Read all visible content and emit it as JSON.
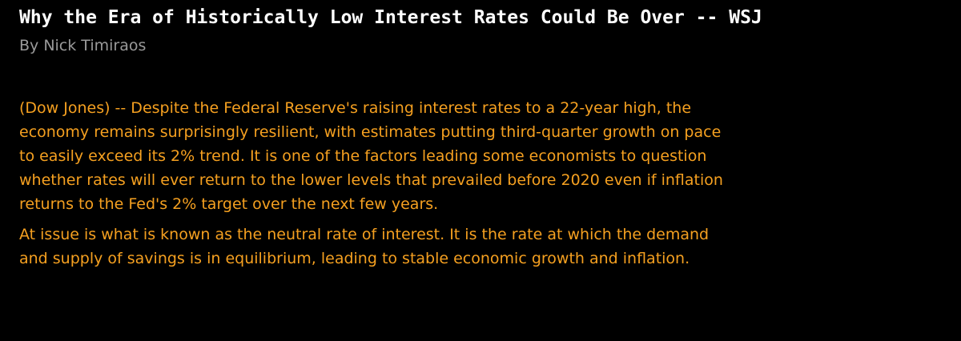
{
  "article": {
    "headline": "Why the Era of Historically Low Interest Rates Could Be Over -- WSJ",
    "byline": "By Nick Timiraos",
    "paragraphs": [
      "(Dow Jones) -- Despite the Federal Reserve's raising interest rates to a 22-year high, the economy remains surprisingly resilient, with estimates putting third-quarter growth on pace to easily exceed its 2% trend. It is one of the factors leading some economists to question whether rates will ever return to the lower levels that prevailed before 2020 even if inflation returns to the Fed's 2% target over the next few years.",
      "At issue is what is known as the neutral rate of interest. It is the rate at which the demand and supply of savings is in equilibrium, leading to stable economic growth and inflation."
    ]
  },
  "colors": {
    "background": "#000000",
    "headline": "#ffffff",
    "byline": "#9a9a9a",
    "body_text": "#f5a020"
  }
}
